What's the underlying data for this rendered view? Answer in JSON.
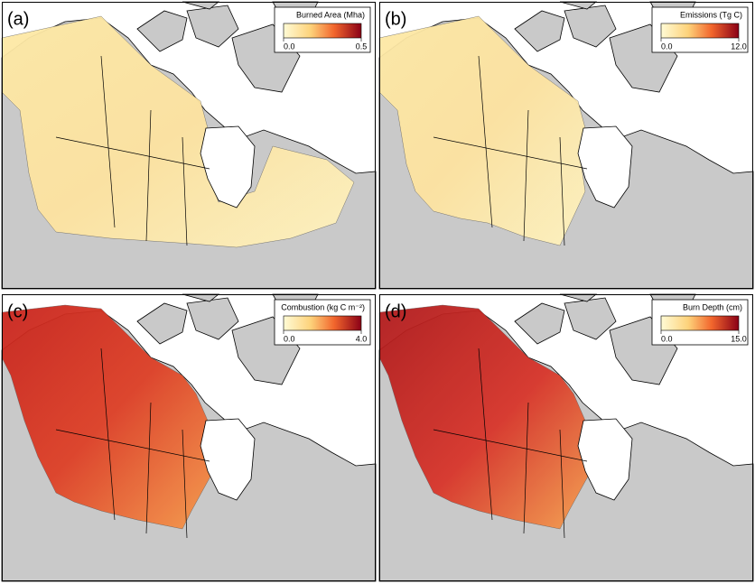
{
  "panels": [
    {
      "label": "(a)",
      "legend": {
        "title": "Burned Area (Mha)",
        "ticks": [
          {
            "value": 0,
            "label": "0.0"
          },
          0.5
        ]
      }
    },
    {
      "label": "(b)",
      "legend": {
        "title": "Emissions (Tg C)",
        "ticks": [
          {
            "value": 0,
            "label": "0.0"
          },
          {
            "value": 12,
            "label": "12.0"
          }
        ]
      }
    },
    {
      "label": "(c)",
      "legend": {
        "title": "Combustion (kg C m⁻²)",
        "ticks": [
          {
            "value": 0,
            "label": "0.0"
          },
          {
            "value": 4,
            "label": "4.0"
          }
        ]
      }
    },
    {
      "label": "(d)",
      "legend": {
        "title": "Burn Depth (cm)",
        "ticks": [
          {
            "value": 0,
            "label": "0.0"
          },
          {
            "value": 15,
            "label": "15.0"
          }
        ]
      }
    }
  ]
}
